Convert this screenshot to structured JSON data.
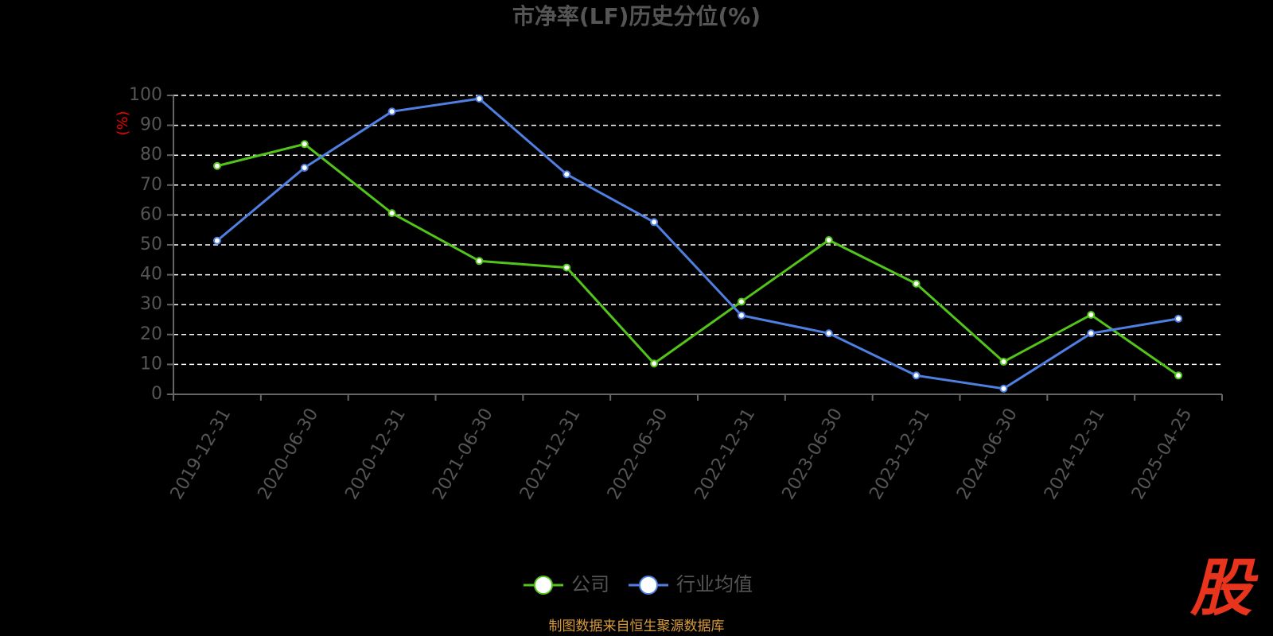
{
  "chart_data": {
    "type": "line",
    "title": "市净率(LF)历史分位(%)",
    "y_axis_label": "(%)",
    "categories": [
      "2019-12-31",
      "2020-06-30",
      "2020-12-31",
      "2021-06-30",
      "2021-12-31",
      "2022-06-30",
      "2022-12-31",
      "2023-06-30",
      "2023-12-31",
      "2024-06-30",
      "2024-12-31",
      "2025-04-25"
    ],
    "series": [
      {
        "name": "公司",
        "color": "#52c41a",
        "values": [
          76.4,
          83.7,
          60.6,
          44.6,
          42.4,
          10.3,
          31,
          51.6,
          37,
          10.9,
          26.6,
          6.3
        ]
      },
      {
        "name": "行业均值",
        "color": "#4f7fe0",
        "values": [
          51.4,
          75.8,
          94.6,
          98.9,
          73.6,
          57.6,
          26.4,
          20.4,
          6.3,
          1.9,
          20.4,
          25.3
        ]
      }
    ],
    "ylim": [
      0,
      100
    ],
    "yticks": [
      0,
      10,
      20,
      30,
      40,
      50,
      60,
      70,
      80,
      90,
      100
    ],
    "grid": true,
    "legend": "bottom",
    "source": "制图数据来自恒生聚源数据库",
    "logo": "股"
  }
}
